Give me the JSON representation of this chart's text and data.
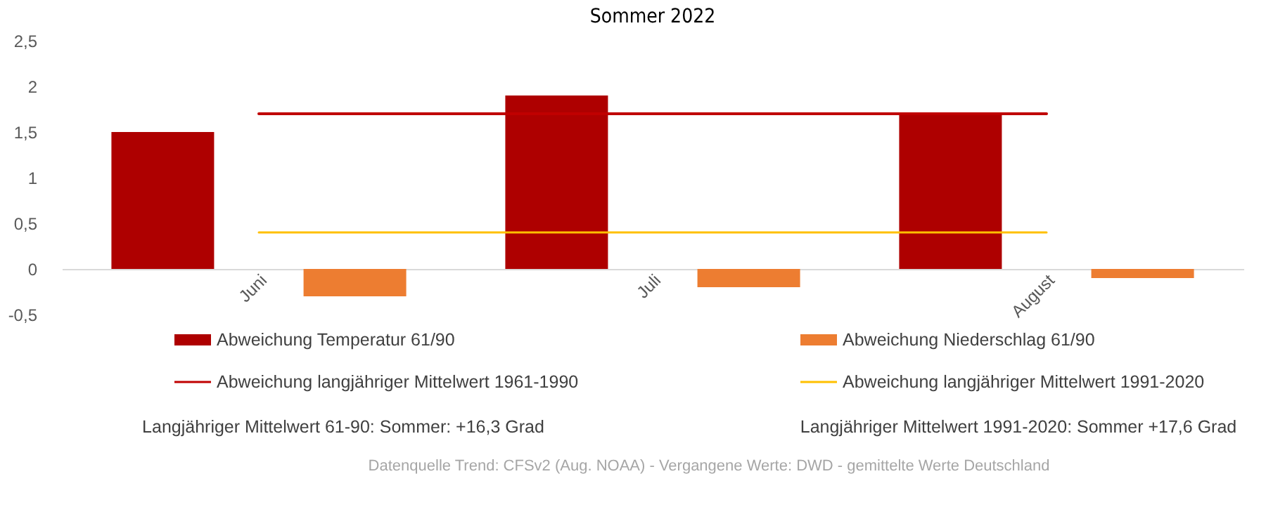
{
  "chart_data": {
    "type": "bar",
    "title": "Sommer 2022",
    "categories": [
      "Juni",
      "Juli",
      "August"
    ],
    "series": [
      {
        "name": "Abweichung Temperatur 61/90",
        "color": "#ae0000",
        "values": [
          1.5,
          1.9,
          1.7
        ]
      },
      {
        "name": "Abweichung Niederschlag 61/90",
        "color": "#ed7d31",
        "values": [
          -0.3,
          -0.2,
          -0.1
        ]
      },
      {
        "name": "Abweichung langjähriger Mittelwert 1961-1990",
        "type": "line",
        "color": "#c00000",
        "values": [
          1.7,
          1.7,
          1.7
        ]
      },
      {
        "name": "Abweichung langjähriger Mittelwert 1991-2020",
        "type": "line",
        "color": "#ffc000",
        "values": [
          0.4,
          0.4,
          0.4
        ]
      }
    ],
    "ylim": [
      -0.5,
      2.5
    ],
    "yticks": [
      {
        "value": -0.5,
        "label": "-0,5"
      },
      0,
      {
        "value": 0.5,
        "label": "0,5"
      },
      1,
      {
        "value": 1.5,
        "label": "1,5"
      },
      2,
      {
        "value": 2.5,
        "label": "2,5"
      }
    ],
    "grid": false,
    "legend": "bottom",
    "marker": "none",
    "line_style": "solid",
    "annotations": [
      "Langjähriger Mittelwert 61-90: Sommer: +16,3 Grad",
      "Langjähriger Mittelwert 1991-2020: Sommer +17,6 Grad",
      "Datenquelle Trend: CFSv2 (Aug. NOAA) - Vergangene Werte: DWD - gemittelte Werte Deutschland"
    ]
  }
}
